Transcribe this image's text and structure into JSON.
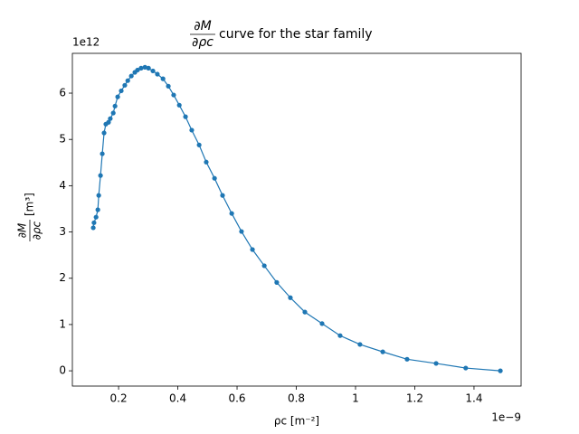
{
  "chart_data": {
    "type": "line",
    "title_fraction": {
      "numerator": "∂M",
      "denominator": "∂ρc"
    },
    "title": "curve for the star family",
    "xlabel": "ρc [m⁻²]",
    "ylabel_fraction": {
      "numerator": "∂M",
      "denominator": "∂ρc"
    },
    "ylabel_unit": "[m³]",
    "x_offset_label": "1e−9",
    "y_offset_label": "1e12",
    "xlim": [
      0.044,
      1.559
    ],
    "ylim": [
      -0.33,
      6.86
    ],
    "xticks": [
      0.2,
      0.4,
      0.6,
      0.8,
      1.0,
      1.2,
      1.4
    ],
    "yticks": [
      0,
      1,
      2,
      3,
      4,
      5,
      6
    ],
    "grid": false,
    "series": [
      {
        "color": "#1f77b4",
        "marker": "circle",
        "x": [
          0.1145,
          0.117,
          0.124,
          0.13,
          0.133,
          0.139,
          0.145,
          0.151,
          0.157,
          0.166,
          0.172,
          0.182,
          0.188,
          0.197,
          0.209,
          0.221,
          0.231,
          0.243,
          0.255,
          0.264,
          0.276,
          0.289,
          0.301,
          0.316,
          0.331,
          0.35,
          0.368,
          0.386,
          0.405,
          0.426,
          0.447,
          0.472,
          0.496,
          0.524,
          0.551,
          0.582,
          0.615,
          0.652,
          0.692,
          0.734,
          0.78,
          0.829,
          0.887,
          0.948,
          1.015,
          1.092,
          1.174,
          1.272,
          1.372,
          1.489
        ],
        "values": [
          3.09,
          3.2,
          3.32,
          3.48,
          3.79,
          4.22,
          4.69,
          5.14,
          5.33,
          5.37,
          5.45,
          5.57,
          5.72,
          5.92,
          6.05,
          6.17,
          6.27,
          6.37,
          6.45,
          6.5,
          6.54,
          6.56,
          6.54,
          6.48,
          6.41,
          6.31,
          6.15,
          5.96,
          5.74,
          5.49,
          5.2,
          4.88,
          4.51,
          4.16,
          3.79,
          3.4,
          3.01,
          2.62,
          2.27,
          1.91,
          1.58,
          1.27,
          1.02,
          0.76,
          0.57,
          0.41,
          0.25,
          0.16,
          0.06,
          0.0
        ]
      }
    ]
  }
}
